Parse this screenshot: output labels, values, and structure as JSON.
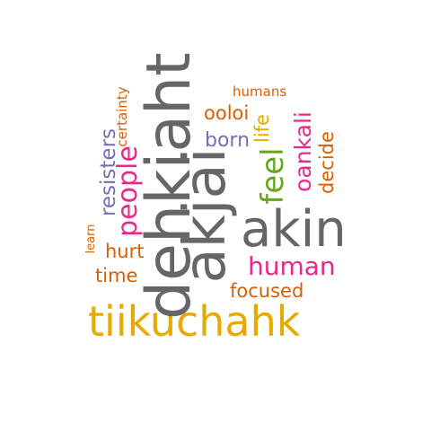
{
  "palette": {
    "gray": "#666666",
    "gold": "#e6ab02",
    "magenta": "#e7298a",
    "orange": "#d95f02",
    "purple": "#7570b3",
    "green": "#66a61e",
    "olive": "#a6761d"
  },
  "words": {
    "dehkiaht": "dehkiaht",
    "akjai": "akjai",
    "akin": "akin",
    "tiikuchahk": "tiikuchahk",
    "human": "human",
    "people": "people",
    "feel": "feel",
    "oankali": "oankali",
    "resisters": "resisters",
    "focused": "focused",
    "born": "born",
    "hurt": "hurt",
    "time": "time",
    "ooloi": "ooloi",
    "decide": "decide",
    "life": "life",
    "humans": "humans",
    "certainty": "certainty",
    "learn": "learn"
  }
}
